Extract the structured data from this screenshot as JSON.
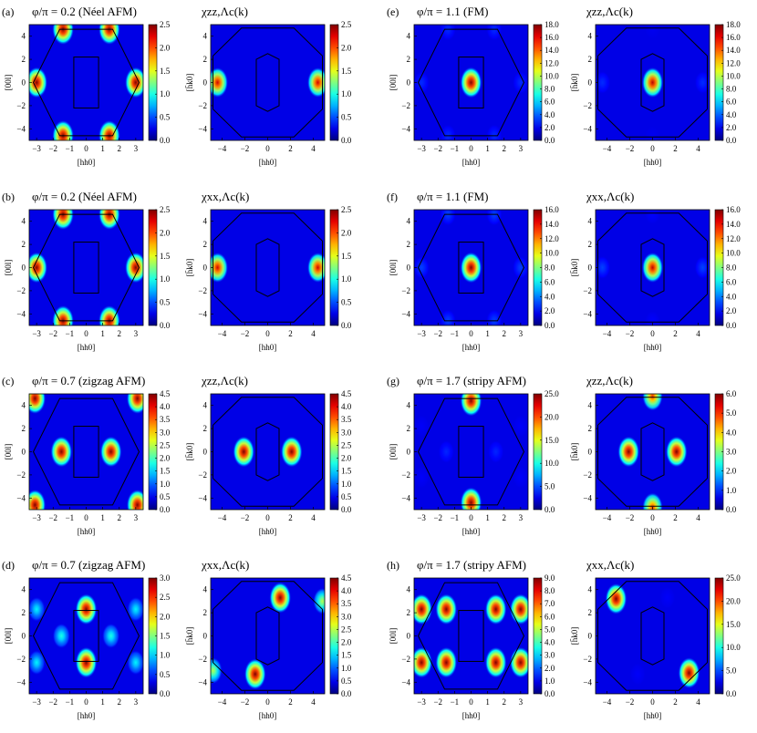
{
  "chart_data": [
    {
      "type": "heatmap",
      "panel_label": "(a)",
      "title": "φ/π = 0.2 (Néel AFM)",
      "xlabel": "[hh0]",
      "ylabel": "[00l]",
      "xticks": [
        "−3",
        "−2",
        "−1",
        "0",
        "1",
        "2",
        "3"
      ],
      "yticks": [
        "4",
        "2",
        "0",
        "−2",
        "−4"
      ],
      "colorbar_ticks": [
        "0.0",
        "0.5",
        "1.0",
        "1.5",
        "2.0",
        "2.5"
      ],
      "vmax": 2.5,
      "peaks": [
        {
          "x": -1.4,
          "y": 4.6,
          "v": 2.5
        },
        {
          "x": 1.4,
          "y": 4.6,
          "v": 2.5
        },
        {
          "x": -1.4,
          "y": -4.6,
          "v": 2.5
        },
        {
          "x": 1.4,
          "y": -4.6,
          "v": 2.5
        },
        {
          "x": -3.0,
          "y": 0,
          "v": 2.5
        },
        {
          "x": 3.0,
          "y": 0,
          "v": 2.5
        }
      ]
    },
    {
      "type": "heatmap",
      "panel_label": "",
      "title": "χzz,Λc(k)",
      "xlabel": "[hh0]",
      "ylabel": "[h̄k0]",
      "xticks": [
        "−4",
        "−2",
        "0",
        "2",
        "4"
      ],
      "yticks": [
        "4",
        "2",
        "0",
        "−2",
        "−4"
      ],
      "colorbar_ticks": [
        "0.0",
        "0.5",
        "1.0",
        "1.5",
        "2.0",
        "2.5"
      ],
      "vmax": 2.5,
      "peaks": [
        {
          "x": -4.4,
          "y": 0,
          "v": 2.3
        },
        {
          "x": 4.4,
          "y": 0,
          "v": 2.3
        }
      ]
    },
    {
      "type": "heatmap",
      "panel_label": "(e)",
      "title": "φ/π = 1.1 (FM)",
      "xlabel": "[hh0]",
      "ylabel": "[00l]",
      "xticks": [
        "−3",
        "−2",
        "−1",
        "0",
        "1",
        "2",
        "3"
      ],
      "yticks": [
        "4",
        "2",
        "0",
        "−2",
        "−4"
      ],
      "colorbar_ticks": [
        "0.0",
        "2.0",
        "4.0",
        "6.0",
        "8.0",
        "10.0",
        "12.0",
        "14.0",
        "16.0",
        "18.0"
      ],
      "vmax": 18,
      "peaks": [
        {
          "x": 0,
          "y": 0,
          "v": 18
        },
        {
          "x": -3.0,
          "y": 0,
          "v": 3
        },
        {
          "x": 3.0,
          "y": 0,
          "v": 3
        },
        {
          "x": -1.4,
          "y": -4.6,
          "v": 3
        },
        {
          "x": 1.4,
          "y": -4.6,
          "v": 3
        },
        {
          "x": -1.4,
          "y": 4.6,
          "v": 3
        },
        {
          "x": 1.4,
          "y": 4.6,
          "v": 3
        }
      ]
    },
    {
      "type": "heatmap",
      "panel_label": "",
      "title": "χzz,Λc(k)",
      "xlabel": "[hh0]",
      "ylabel": "[h̄k0]",
      "xticks": [
        "−4",
        "−2",
        "0",
        "2",
        "4"
      ],
      "yticks": [
        "4",
        "2",
        "0",
        "−2",
        "−4"
      ],
      "colorbar_ticks": [
        "0.0",
        "2.0",
        "4.0",
        "6.0",
        "8.0",
        "10.0",
        "12.0",
        "14.0",
        "16.0",
        "18.0"
      ],
      "vmax": 18,
      "peaks": [
        {
          "x": 0,
          "y": 0,
          "v": 17
        },
        {
          "x": -4.4,
          "y": 0,
          "v": 3
        },
        {
          "x": 4.4,
          "y": 0,
          "v": 3
        },
        {
          "x": 0,
          "y": 4.7,
          "v": 2
        },
        {
          "x": 0,
          "y": -4.7,
          "v": 2
        }
      ]
    },
    {
      "type": "heatmap",
      "panel_label": "(b)",
      "title": "φ/π = 0.2 (Néel AFM)",
      "xlabel": "[hh0]",
      "ylabel": "[00l]",
      "xticks": [
        "−3",
        "−2",
        "−1",
        "0",
        "1",
        "2",
        "3"
      ],
      "yticks": [
        "4",
        "2",
        "0",
        "−2",
        "−4"
      ],
      "colorbar_ticks": [
        "0.0",
        "0.5",
        "1.0",
        "1.5",
        "2.0",
        "2.5"
      ],
      "vmax": 2.5,
      "peaks": [
        {
          "x": -1.4,
          "y": 4.6,
          "v": 2.5
        },
        {
          "x": 1.4,
          "y": 4.6,
          "v": 2.5
        },
        {
          "x": -1.4,
          "y": -4.6,
          "v": 2.5
        },
        {
          "x": 1.4,
          "y": -4.6,
          "v": 2.5
        },
        {
          "x": -3.0,
          "y": 0,
          "v": 2.5
        },
        {
          "x": 3.0,
          "y": 0,
          "v": 2.5
        }
      ]
    },
    {
      "type": "heatmap",
      "panel_label": "",
      "title": "χxx,Λc(k)",
      "xlabel": "[hh0]",
      "ylabel": "[h̄k0]",
      "xticks": [
        "−4",
        "−2",
        "0",
        "2",
        "4"
      ],
      "yticks": [
        "4",
        "2",
        "0",
        "−2",
        "−4"
      ],
      "colorbar_ticks": [
        "0.0",
        "0.5",
        "1.0",
        "1.5",
        "2.0",
        "2.5"
      ],
      "vmax": 2.5,
      "peaks": [
        {
          "x": -4.4,
          "y": 0,
          "v": 2.3
        },
        {
          "x": 4.4,
          "y": 0,
          "v": 2.3
        }
      ]
    },
    {
      "type": "heatmap",
      "panel_label": "(f)",
      "title": "φ/π = 1.1 (FM)",
      "xlabel": "[hh0]",
      "ylabel": "[00l]",
      "xticks": [
        "−3",
        "−2",
        "−1",
        "0",
        "1",
        "2",
        "3"
      ],
      "yticks": [
        "4",
        "2",
        "0",
        "−2",
        "−4"
      ],
      "colorbar_ticks": [
        "0.0",
        "2.0",
        "4.0",
        "6.0",
        "8.0",
        "10.0",
        "12.0",
        "14.0",
        "16.0"
      ],
      "vmax": 16,
      "peaks": [
        {
          "x": 0,
          "y": 0,
          "v": 16
        },
        {
          "x": -3.0,
          "y": 0,
          "v": 3
        },
        {
          "x": 3.0,
          "y": 0,
          "v": 3
        },
        {
          "x": -1.4,
          "y": -4.6,
          "v": 3
        },
        {
          "x": 1.4,
          "y": -4.6,
          "v": 3
        },
        {
          "x": -1.4,
          "y": 4.6,
          "v": 3
        },
        {
          "x": 1.4,
          "y": 4.6,
          "v": 3
        }
      ]
    },
    {
      "type": "heatmap",
      "panel_label": "",
      "title": "χxx,Λc(k)",
      "xlabel": "[hh0]",
      "ylabel": "[h̄k0]",
      "xticks": [
        "−4",
        "−2",
        "0",
        "2",
        "4"
      ],
      "yticks": [
        "4",
        "2",
        "0",
        "−2",
        "−4"
      ],
      "colorbar_ticks": [
        "0.0",
        "2.0",
        "4.0",
        "6.0",
        "8.0",
        "10.0",
        "12.0",
        "14.0",
        "16.0"
      ],
      "vmax": 16,
      "peaks": [
        {
          "x": 0,
          "y": 0,
          "v": 15
        },
        {
          "x": -4.4,
          "y": 0,
          "v": 3
        },
        {
          "x": 4.4,
          "y": 0,
          "v": 3
        },
        {
          "x": 0,
          "y": 4.7,
          "v": 2
        },
        {
          "x": 0,
          "y": -4.7,
          "v": 2
        }
      ]
    },
    {
      "type": "heatmap",
      "panel_label": "(c)",
      "title": "φ/π = 0.7 (zigzag AFM)",
      "xlabel": "[hh0]",
      "ylabel": "[00l]",
      "xticks": [
        "−3",
        "−2",
        "−1",
        "0",
        "1",
        "2",
        "3"
      ],
      "yticks": [
        "4",
        "2",
        "0",
        "−2",
        "−4"
      ],
      "colorbar_ticks": [
        "0.0",
        "0.5",
        "1.0",
        "1.5",
        "2.0",
        "2.5",
        "3.0",
        "3.5",
        "4.0",
        "4.5"
      ],
      "vmax": 4.5,
      "peaks": [
        {
          "x": -1.5,
          "y": 0,
          "v": 4.5
        },
        {
          "x": 1.5,
          "y": 0,
          "v": 4.5
        },
        {
          "x": -3.1,
          "y": 4.6,
          "v": 4.5
        },
        {
          "x": 3.1,
          "y": 4.6,
          "v": 4.5
        },
        {
          "x": -3.1,
          "y": -4.6,
          "v": 4.5
        },
        {
          "x": 3.1,
          "y": -4.6,
          "v": 4.5
        }
      ]
    },
    {
      "type": "heatmap",
      "panel_label": "",
      "title": "χzz,Λc(k)",
      "xlabel": "[hh0]",
      "ylabel": "[h̄k0]",
      "xticks": [
        "−4",
        "−2",
        "0",
        "2",
        "4"
      ],
      "yticks": [
        "4",
        "2",
        "0",
        "−2",
        "−4"
      ],
      "colorbar_ticks": [
        "0.0",
        "0.5",
        "1.0",
        "1.5",
        "2.0",
        "2.5",
        "3.0",
        "3.5",
        "4.0",
        "4.5"
      ],
      "vmax": 4.5,
      "peaks": [
        {
          "x": -2.1,
          "y": 0,
          "v": 4.5
        },
        {
          "x": 2.1,
          "y": 0,
          "v": 4.5
        }
      ]
    },
    {
      "type": "heatmap",
      "panel_label": "(g)",
      "title": "φ/π = 1.7 (stripy AFM)",
      "xlabel": "[hh0]",
      "ylabel": "[00l]",
      "xticks": [
        "−3",
        "−2",
        "−1",
        "0",
        "1",
        "2",
        "3"
      ],
      "yticks": [
        "4",
        "2",
        "0",
        "−2",
        "−4"
      ],
      "colorbar_ticks": [
        "0.0",
        "5.0",
        "10.0",
        "15.0",
        "20.0",
        "25.0"
      ],
      "vmax": 25,
      "peaks": [
        {
          "x": 0,
          "y": 4.4,
          "v": 25
        },
        {
          "x": 0,
          "y": -4.4,
          "v": 25
        },
        {
          "x": -1.5,
          "y": 0,
          "v": 4
        },
        {
          "x": 1.5,
          "y": 0,
          "v": 4
        },
        {
          "x": -3.0,
          "y": 2.2,
          "v": 3
        },
        {
          "x": 3.0,
          "y": 2.2,
          "v": 3
        },
        {
          "x": -3.0,
          "y": -2.2,
          "v": 3
        },
        {
          "x": 3.0,
          "y": -2.2,
          "v": 3
        }
      ]
    },
    {
      "type": "heatmap",
      "panel_label": "",
      "title": "χzz,Λc(k)",
      "xlabel": "[hh0]",
      "ylabel": "[h̄k0]",
      "xticks": [
        "−4",
        "−2",
        "0",
        "2",
        "4"
      ],
      "yticks": [
        "4",
        "2",
        "0",
        "−2",
        "−4"
      ],
      "colorbar_ticks": [
        "0.0",
        "1.0",
        "2.0",
        "3.0",
        "4.0",
        "5.0",
        "6.0"
      ],
      "vmax": 6,
      "peaks": [
        {
          "x": -2.1,
          "y": 0,
          "v": 6
        },
        {
          "x": 2.1,
          "y": 0,
          "v": 6
        },
        {
          "x": 0,
          "y": 4.8,
          "v": 5
        },
        {
          "x": 0,
          "y": -4.8,
          "v": 5
        }
      ]
    },
    {
      "type": "heatmap",
      "panel_label": "(d)",
      "title": "φ/π = 0.7 (zigzag AFM)",
      "xlabel": "[hh0]",
      "ylabel": "[00l]",
      "xticks": [
        "−3",
        "−2",
        "−1",
        "0",
        "1",
        "2",
        "3"
      ],
      "yticks": [
        "4",
        "2",
        "0",
        "−2",
        "−4"
      ],
      "colorbar_ticks": [
        "0.0",
        "0.5",
        "1.0",
        "1.5",
        "2.0",
        "2.5",
        "3.0"
      ],
      "vmax": 3.0,
      "peaks": [
        {
          "x": 0,
          "y": 2.3,
          "v": 3.0
        },
        {
          "x": 0,
          "y": -2.3,
          "v": 3.0
        },
        {
          "x": -1.5,
          "y": 0,
          "v": 1.2
        },
        {
          "x": 1.5,
          "y": 0,
          "v": 1.2
        },
        {
          "x": -3.0,
          "y": 2.3,
          "v": 1.1
        },
        {
          "x": 3.0,
          "y": 2.3,
          "v": 1.1
        },
        {
          "x": -3.0,
          "y": -2.3,
          "v": 1.1
        },
        {
          "x": 3.0,
          "y": -2.3,
          "v": 1.1
        }
      ]
    },
    {
      "type": "heatmap",
      "panel_label": "",
      "title": "χxx,Λc(k)",
      "xlabel": "[hh0]",
      "ylabel": "[h̄k0]",
      "xticks": [
        "−4",
        "−2",
        "0",
        "2",
        "4"
      ],
      "yticks": [
        "4",
        "2",
        "0",
        "−2",
        "−4"
      ],
      "colorbar_ticks": [
        "0.0",
        "0.5",
        "1.0",
        "1.5",
        "2.0",
        "2.5",
        "3.0",
        "3.5",
        "4.0",
        "4.5"
      ],
      "vmax": 4.5,
      "peaks": [
        {
          "x": 1.1,
          "y": 3.3,
          "v": 4.5
        },
        {
          "x": -1.1,
          "y": -3.3,
          "v": 4.5
        },
        {
          "x": 4.8,
          "y": 3.0,
          "v": 2.5
        },
        {
          "x": -4.8,
          "y": -3.0,
          "v": 2.5
        }
      ]
    },
    {
      "type": "heatmap",
      "panel_label": "(h)",
      "title": "φ/π = 1.7 (stripy AFM)",
      "xlabel": "[hh0]",
      "ylabel": "[00l]",
      "xticks": [
        "−3",
        "−2",
        "−1",
        "0",
        "1",
        "2",
        "3"
      ],
      "yticks": [
        "4",
        "2",
        "0",
        "−2",
        "−4"
      ],
      "colorbar_ticks": [
        "0.0",
        "1.0",
        "2.0",
        "3.0",
        "4.0",
        "5.0",
        "6.0",
        "7.0",
        "8.0",
        "9.0"
      ],
      "vmax": 9.0,
      "peaks": [
        {
          "x": -3.0,
          "y": 2.3,
          "v": 9
        },
        {
          "x": -1.5,
          "y": 2.3,
          "v": 9
        },
        {
          "x": 1.5,
          "y": 2.3,
          "v": 9
        },
        {
          "x": 3.0,
          "y": 2.3,
          "v": 9
        },
        {
          "x": -3.0,
          "y": -2.3,
          "v": 9
        },
        {
          "x": -1.5,
          "y": -2.3,
          "v": 9
        },
        {
          "x": 1.5,
          "y": -2.3,
          "v": 9
        },
        {
          "x": 3.0,
          "y": -2.3,
          "v": 9
        }
      ]
    },
    {
      "type": "heatmap",
      "panel_label": "",
      "title": "χxx,Λc(k)",
      "xlabel": "[hh0]",
      "ylabel": "[h̄k0]",
      "xticks": [
        "−4",
        "−2",
        "0",
        "2",
        "4"
      ],
      "yticks": [
        "4",
        "2",
        "0",
        "−2",
        "−4"
      ],
      "colorbar_ticks": [
        "0.0",
        "5.0",
        "10.0",
        "15.0",
        "20.0",
        "25.0"
      ],
      "vmax": 25,
      "peaks": [
        {
          "x": -3.2,
          "y": 3.2,
          "v": 25
        },
        {
          "x": 3.2,
          "y": -3.2,
          "v": 25
        },
        {
          "x": -1.3,
          "y": -3.3,
          "v": 3
        },
        {
          "x": 1.3,
          "y": 3.3,
          "v": 3
        }
      ]
    }
  ]
}
